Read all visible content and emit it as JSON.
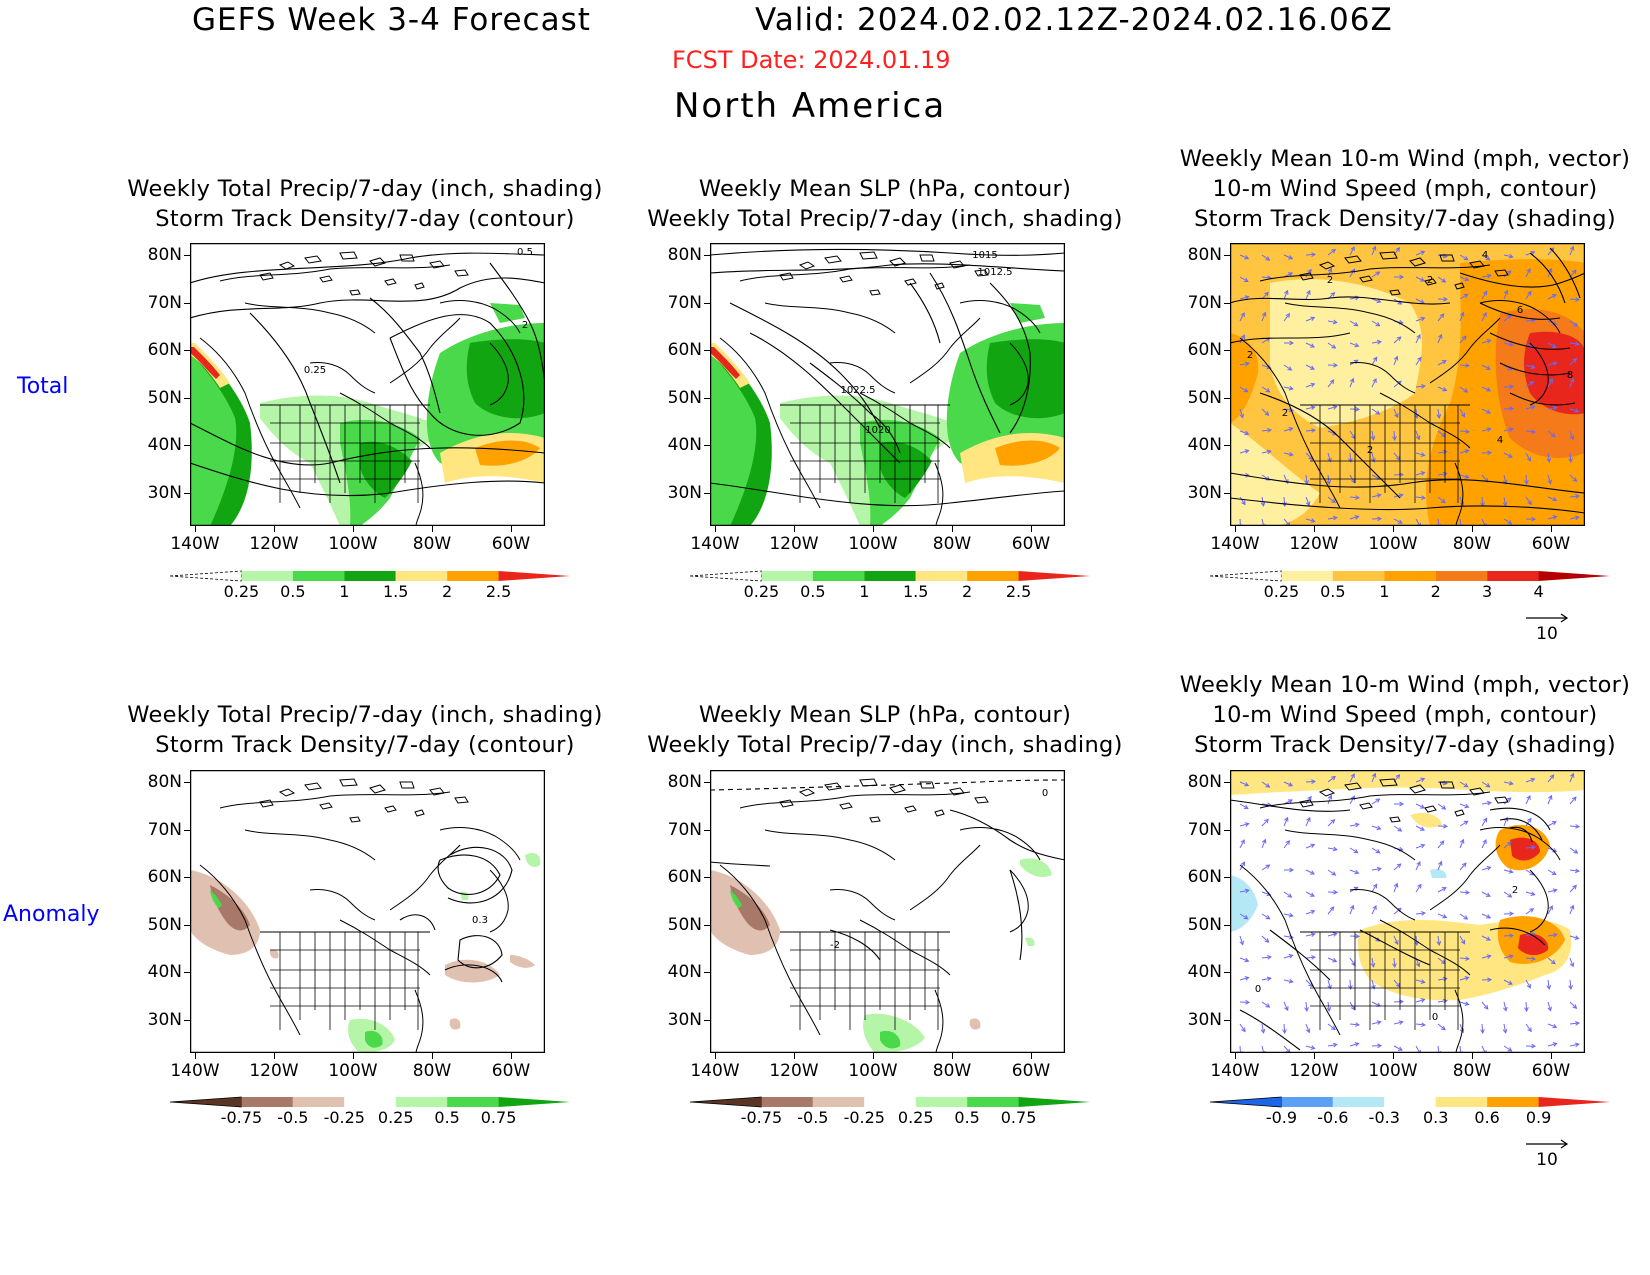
{
  "header": {
    "title": "GEFS Week 3-4 Forecast",
    "valid": "Valid: 2024.02.02.12Z-2024.02.16.06Z",
    "fcst_date": "FCST Date: 2024.01.19",
    "region": "North America"
  },
  "row_labels": {
    "total": "Total",
    "anomaly": "Anomaly"
  },
  "axes": {
    "lat": [
      "80N",
      "70N",
      "60N",
      "50N",
      "40N",
      "30N"
    ],
    "lon": [
      "140W",
      "120W",
      "100W",
      "80W",
      "60W"
    ]
  },
  "panels": [
    {
      "id": "total-precip-track",
      "row": "total",
      "title_lines": [
        "Weekly Total Precip/7-day (inch, shading)",
        "Storm Track Density/7-day (contour)"
      ],
      "contour_labels": [
        "0.5",
        "2",
        "0.25"
      ],
      "colorbar": {
        "labels": [
          "0.25",
          "0.5",
          "1",
          "1.5",
          "2",
          "2.5"
        ],
        "colors": [
          "#ffffff",
          "#b5f5a8",
          "#4ad94a",
          "#12a512",
          "#ffe680",
          "#ffa200",
          "#e8261c"
        ]
      }
    },
    {
      "id": "total-slp-precip",
      "row": "total",
      "title_lines": [
        "Weekly Mean SLP (hPa, contour)",
        "Weekly Total Precip/7-day (inch, shading)"
      ],
      "contour_labels": [
        "1015",
        "1012.5",
        "1022.5",
        "1020"
      ],
      "colorbar": {
        "labels": [
          "0.25",
          "0.5",
          "1",
          "1.5",
          "2",
          "2.5"
        ],
        "colors": [
          "#ffffff",
          "#b5f5a8",
          "#4ad94a",
          "#12a512",
          "#ffe680",
          "#ffa200",
          "#e8261c"
        ]
      }
    },
    {
      "id": "total-wind-track",
      "row": "total",
      "title_lines": [
        "Weekly Mean 10-m Wind (mph, vector)",
        "10-m Wind Speed (mph, contour)",
        "Storm Track Density/7-day (shading)"
      ],
      "contour_labels": [
        "4",
        "2",
        "6",
        "2",
        "8",
        "2",
        "2",
        "2",
        "4"
      ],
      "colorbar": {
        "labels": [
          "0.25",
          "0.5",
          "1",
          "2",
          "3",
          "4"
        ],
        "colors": [
          "#ffffff",
          "#fff0a0",
          "#ffc440",
          "#ffa200",
          "#f57a1a",
          "#e8261c",
          "#b40000"
        ]
      },
      "vector_ref": "10"
    },
    {
      "id": "anom-precip-track",
      "row": "anomaly",
      "title_lines": [
        "Weekly Total Precip/7-day (inch, shading)",
        "Storm Track Density/7-day (contour)"
      ],
      "contour_labels": [
        "0.3"
      ],
      "colorbar": {
        "labels": [
          "-0.75",
          "-0.5",
          "-0.25",
          "0.25",
          "0.5",
          "0.75"
        ],
        "colors": [
          "#5a3424",
          "#a87868",
          "#e0c0b0",
          "#ffffff",
          "#b5f5a8",
          "#4ad94a",
          "#12a512"
        ]
      }
    },
    {
      "id": "anom-slp-precip",
      "row": "anomaly",
      "title_lines": [
        "Weekly Mean SLP (hPa, contour)",
        "Weekly Total Precip/7-day (inch, shading)"
      ],
      "contour_labels": [
        "0",
        "-2"
      ],
      "colorbar": {
        "labels": [
          "-0.75",
          "-0.5",
          "-0.25",
          "0.25",
          "0.5",
          "0.75"
        ],
        "colors": [
          "#5a3424",
          "#a87868",
          "#e0c0b0",
          "#ffffff",
          "#b5f5a8",
          "#4ad94a",
          "#12a512"
        ]
      }
    },
    {
      "id": "anom-wind-track",
      "row": "anomaly",
      "title_lines": [
        "Weekly Mean 10-m Wind (mph, vector)",
        "10-m Wind Speed (mph, contour)",
        "Storm Track Density/7-day (shading)"
      ],
      "contour_labels": [
        "2",
        "0",
        "0"
      ],
      "colorbar": {
        "labels": [
          "-0.9",
          "-0.6",
          "-0.3",
          "0.3",
          "0.6",
          "0.9"
        ],
        "colors": [
          "#1c64e8",
          "#5aa0f5",
          "#b4e8f5",
          "#ffffff",
          "#ffe680",
          "#ffa200",
          "#e8261c"
        ]
      },
      "vector_ref": "10"
    }
  ]
}
